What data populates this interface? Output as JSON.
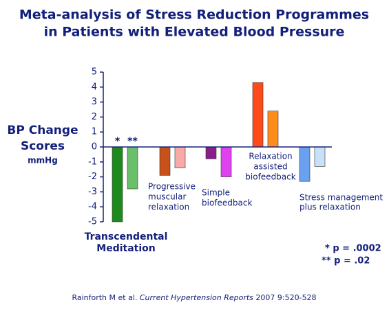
{
  "chart_data": {
    "type": "bar",
    "title": [
      "Meta-analysis of Stress Reduction Programmes",
      "in Patients with Elevated Blood Pressure"
    ],
    "y_label": [
      "BP Change",
      "Scores",
      "mmHg"
    ],
    "categories": [
      [
        "Transcendental",
        "Meditation"
      ],
      [
        "Progressive",
        "muscular",
        "relaxation"
      ],
      [
        "Simple",
        "biofeedback"
      ],
      [
        "Relaxation",
        "assisted",
        "biofeedback"
      ],
      [
        "Stress management",
        "plus relaxation"
      ]
    ],
    "series": [
      {
        "values": [
          -5.0,
          -1.9,
          -0.8,
          4.3,
          -2.3
        ],
        "colors": [
          "#1e8a1e",
          "#c8501a",
          "#8a1e8a",
          "#ff4a1a",
          "#6aa0f0"
        ]
      },
      {
        "values": [
          -2.8,
          -1.4,
          -2.0,
          2.4,
          -1.3
        ],
        "colors": [
          "#6abf6a",
          "#f8aaa8",
          "#e040f0",
          "#ff8c1a",
          "#c8e0f8"
        ]
      }
    ],
    "bar_annotations": [
      "*",
      "**"
    ],
    "footnotes": [
      "*  p = .0002",
      "** p = .02"
    ],
    "citation": [
      "Rainforth M et al. ",
      "Current Hypertension Reports",
      " 2007 9:520-528"
    ],
    "ylim": [
      -5,
      5
    ],
    "yticks": [
      -5,
      -4,
      -3,
      -2,
      -1,
      0,
      1,
      2,
      3,
      4,
      5
    ]
  }
}
